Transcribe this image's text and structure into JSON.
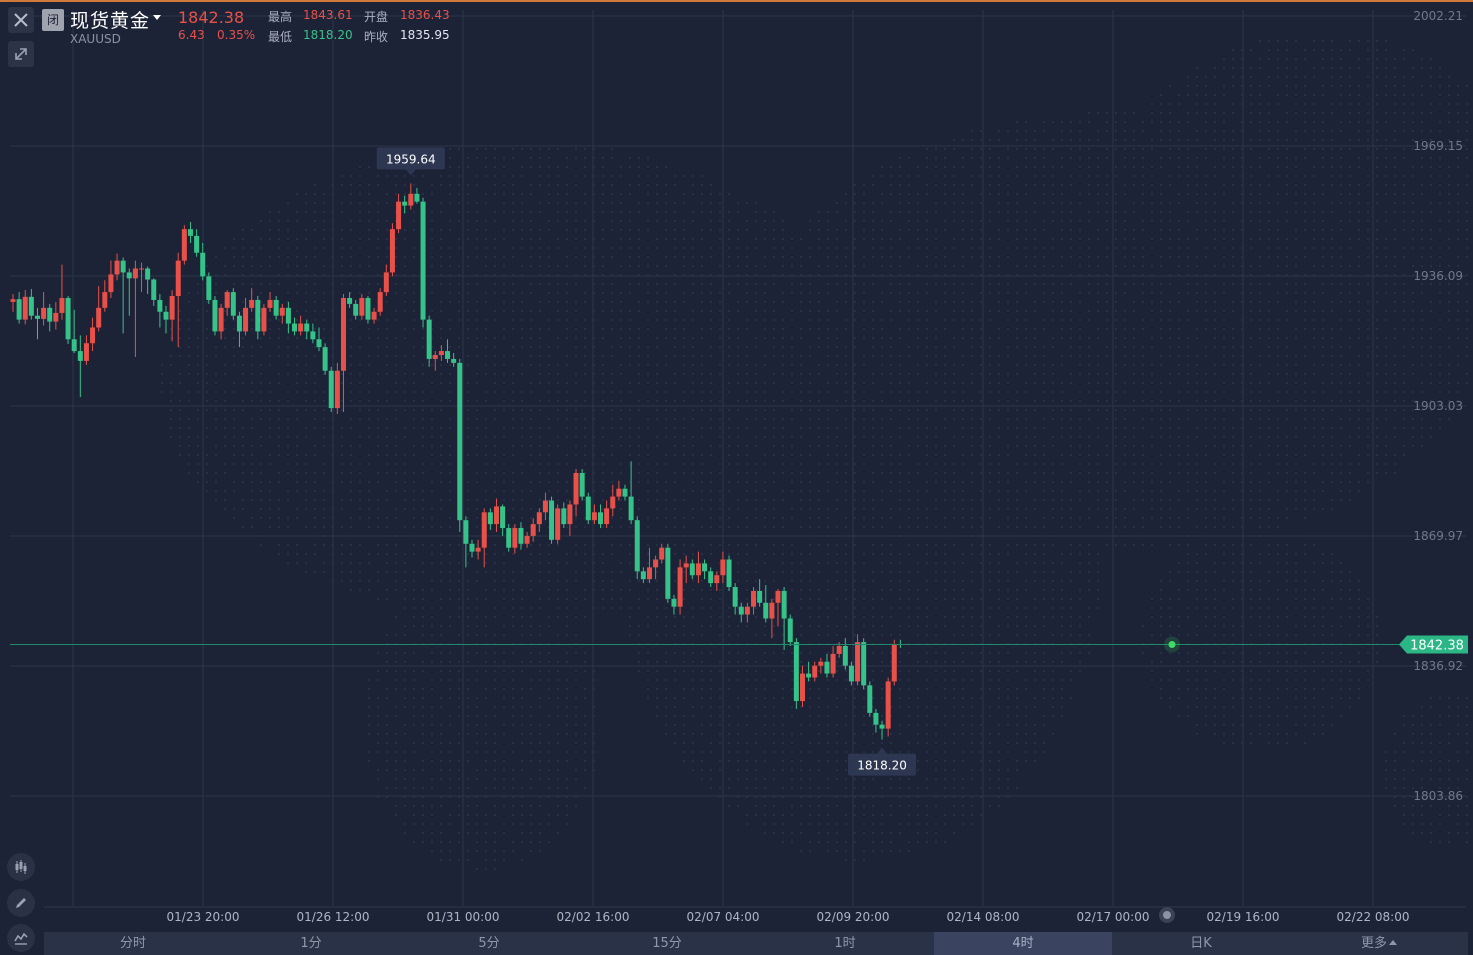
{
  "window": {
    "close_icon": "close-icon",
    "collapse_icon": "collapse-arrows-icon"
  },
  "instrument": {
    "status_badge": "闭",
    "name": "现货黄金",
    "code": "XAUUSD",
    "last_price": "1842.38",
    "change": "6.43",
    "change_pct": "0.35%",
    "high_label": "最高",
    "high": "1843.61",
    "low_label": "最低",
    "low": "1818.20",
    "open_label": "开盘",
    "open": "1836.43",
    "prev_close_label": "昨收",
    "prev_close": "1835.95"
  },
  "colors": {
    "background": "#1d2336",
    "up": "#e8514a",
    "down": "#35c389",
    "grid": "#2c344a",
    "last_price_line": "#1f8a6a",
    "last_price_badge": "#2bb685"
  },
  "side_tools": [
    "candlestick-icon",
    "pencil-icon",
    "indicator-icon"
  ],
  "tabs": [
    "分时",
    "1分",
    "5分",
    "15分",
    "1时",
    "4时",
    "日K",
    "更多"
  ],
  "active_tab": "4时",
  "chart_data": {
    "type": "candlestick",
    "symbol": "XAUUSD",
    "interval": "4时",
    "ylim": [
      1787.3,
      2002.21
    ],
    "y_ticks": [
      2002.21,
      1969.15,
      1936.09,
      1903.03,
      1869.97,
      1836.92,
      1803.86
    ],
    "x_ticks": [
      "01/23 20:00",
      "01/26 12:00",
      "01/31 00:00",
      "02/02 16:00",
      "02/07 04:00",
      "02/09 20:00",
      "02/14 08:00",
      "02/17 00:00",
      "02/19 16:00",
      "02/22 08:00"
    ],
    "last_price": 1842.38,
    "max_label": "1959.64",
    "min_label": "1818.20",
    "grid": true,
    "candles": [
      [
        1929.5,
        1930.2,
        1931.5,
        1927.0
      ],
      [
        1930.2,
        1925.0,
        1932.0,
        1924.0
      ],
      [
        1925.0,
        1930.8,
        1932.5,
        1923.8
      ],
      [
        1930.8,
        1926.0,
        1932.8,
        1925.0
      ],
      [
        1926.0,
        1925.2,
        1928.0,
        1920.0
      ],
      [
        1925.2,
        1928.0,
        1932.0,
        1923.5
      ],
      [
        1928.0,
        1924.5,
        1929.0,
        1922.0
      ],
      [
        1924.5,
        1926.7,
        1929.5,
        1922.5
      ],
      [
        1926.7,
        1930.5,
        1939.0,
        1925.0
      ],
      [
        1930.5,
        1920.0,
        1931.0,
        1918.8
      ],
      [
        1920.0,
        1917.0,
        1927.5,
        1916.5
      ],
      [
        1917.0,
        1914.5,
        1921.0,
        1905.3
      ],
      [
        1914.5,
        1919.0,
        1921.0,
        1913.5
      ],
      [
        1919.0,
        1923.0,
        1925.5,
        1917.0
      ],
      [
        1923.0,
        1928.0,
        1933.5,
        1922.0
      ],
      [
        1928.0,
        1932.0,
        1935.0,
        1927.0
      ],
      [
        1932.0,
        1936.5,
        1940.0,
        1930.5
      ],
      [
        1936.5,
        1940.0,
        1941.8,
        1935.0
      ],
      [
        1940.0,
        1937.0,
        1940.8,
        1921.5
      ],
      [
        1937.0,
        1935.5,
        1938.0,
        1926.0
      ],
      [
        1935.5,
        1938.0,
        1940.0,
        1915.5
      ],
      [
        1938.0,
        1938.0,
        1939.5,
        1932.0
      ],
      [
        1938.0,
        1935.2,
        1938.5,
        1931.5
      ],
      [
        1935.2,
        1930.0,
        1935.5,
        1928.5
      ],
      [
        1930.0,
        1927.0,
        1931.5,
        1923.0
      ],
      [
        1927.0,
        1925.0,
        1928.5,
        1921.5
      ],
      [
        1925.0,
        1931.0,
        1932.5,
        1919.5
      ],
      [
        1931.0,
        1940.0,
        1942.0,
        1918.0
      ],
      [
        1940.0,
        1948.0,
        1949.0,
        1939.0
      ],
      [
        1948.0,
        1946.3,
        1949.8,
        1944.5
      ],
      [
        1946.3,
        1942.0,
        1948.0,
        1941.0
      ],
      [
        1942.0,
        1936.0,
        1944.5,
        1935.0
      ],
      [
        1936.0,
        1930.0,
        1937.0,
        1929.0
      ],
      [
        1930.0,
        1922.0,
        1931.0,
        1921.0
      ],
      [
        1922.0,
        1928.0,
        1929.0,
        1920.0
      ],
      [
        1928.0,
        1932.0,
        1932.5,
        1926.0
      ],
      [
        1932.0,
        1926.0,
        1933.0,
        1925.0
      ],
      [
        1926.0,
        1922.0,
        1927.0,
        1918.0
      ],
      [
        1922.0,
        1928.0,
        1930.5,
        1921.0
      ],
      [
        1928.0,
        1930.0,
        1933.0,
        1927.0
      ],
      [
        1930.0,
        1922.0,
        1931.0,
        1920.0
      ],
      [
        1922.0,
        1928.0,
        1929.0,
        1921.0
      ],
      [
        1928.0,
        1930.0,
        1932.0,
        1927.0
      ],
      [
        1930.0,
        1926.0,
        1931.0,
        1925.0
      ],
      [
        1926.0,
        1928.0,
        1929.0,
        1924.0
      ],
      [
        1928.0,
        1924.0,
        1929.5,
        1921.5
      ],
      [
        1924.0,
        1922.0,
        1925.5,
        1921.0
      ],
      [
        1922.0,
        1924.0,
        1926.0,
        1921.0
      ],
      [
        1924.0,
        1922.0,
        1925.0,
        1920.0
      ],
      [
        1922.0,
        1920.0,
        1924.0,
        1919.0
      ],
      [
        1920.0,
        1918.0,
        1923.0,
        1917.0
      ],
      [
        1918.0,
        1912.0,
        1919.0,
        1911.0
      ],
      [
        1912.0,
        1902.5,
        1913.0,
        1901.5
      ],
      [
        1902.5,
        1912.0,
        1914.0,
        1901.0
      ],
      [
        1912.0,
        1930.5,
        1931.5,
        1901.5
      ],
      [
        1930.5,
        1929.0,
        1932.0,
        1928.0
      ],
      [
        1929.0,
        1926.0,
        1930.0,
        1925.0
      ],
      [
        1926.0,
        1930.5,
        1931.5,
        1925.0
      ],
      [
        1930.5,
        1925.0,
        1931.0,
        1924.0
      ],
      [
        1925.0,
        1927.0,
        1928.0,
        1924.0
      ],
      [
        1927.0,
        1932.0,
        1933.0,
        1926.0
      ],
      [
        1932.0,
        1937.0,
        1939.0,
        1931.0
      ],
      [
        1937.0,
        1948.0,
        1949.5,
        1936.0
      ],
      [
        1948.0,
        1955.0,
        1957.0,
        1947.0
      ],
      [
        1955.0,
        1954.0,
        1956.5,
        1952.0
      ],
      [
        1954.0,
        1957.0,
        1959.64,
        1953.0
      ],
      [
        1957.0,
        1955.0,
        1958.5,
        1954.5
      ],
      [
        1955.0,
        1925.0,
        1956.0,
        1923.0
      ],
      [
        1925.0,
        1915.0,
        1926.0,
        1913.0
      ],
      [
        1915.0,
        1916.0,
        1917.0,
        1912.0
      ],
      [
        1916.0,
        1917.0,
        1918.5,
        1914.5
      ],
      [
        1917.0,
        1915.0,
        1920.0,
        1914.0
      ],
      [
        1915.0,
        1914.0,
        1916.5,
        1913.0
      ],
      [
        1914.0,
        1874.0,
        1915.0,
        1871.0
      ],
      [
        1874.0,
        1868.0,
        1875.0,
        1862.0
      ],
      [
        1868.0,
        1866.0,
        1869.0,
        1864.5
      ],
      [
        1866.0,
        1867.0,
        1869.0,
        1864.0
      ],
      [
        1867.0,
        1876.0,
        1877.0,
        1862.0
      ],
      [
        1876.0,
        1873.0,
        1877.0,
        1871.5
      ],
      [
        1873.0,
        1877.5,
        1879.5,
        1871.0
      ],
      [
        1877.5,
        1872.0,
        1878.0,
        1870.0
      ],
      [
        1872.0,
        1867.0,
        1873.0,
        1866.0
      ],
      [
        1867.0,
        1872.0,
        1873.0,
        1865.5
      ],
      [
        1872.0,
        1868.0,
        1873.5,
        1866.5
      ],
      [
        1868.0,
        1870.0,
        1871.0,
        1867.0
      ],
      [
        1870.0,
        1873.0,
        1874.5,
        1868.5
      ],
      [
        1873.0,
        1876.0,
        1877.0,
        1871.0
      ],
      [
        1876.0,
        1879.0,
        1881.0,
        1874.0
      ],
      [
        1879.0,
        1869.0,
        1880.0,
        1868.0
      ],
      [
        1869.0,
        1877.0,
        1878.0,
        1868.0
      ],
      [
        1877.0,
        1873.0,
        1878.5,
        1872.0
      ],
      [
        1873.0,
        1878.0,
        1879.0,
        1870.0
      ],
      [
        1878.0,
        1886.0,
        1887.0,
        1875.0
      ],
      [
        1886.0,
        1880.0,
        1887.0,
        1879.0
      ],
      [
        1880.0,
        1874.0,
        1881.0,
        1873.0
      ],
      [
        1874.0,
        1876.0,
        1878.0,
        1873.0
      ],
      [
        1876.0,
        1873.0,
        1878.0,
        1872.0
      ],
      [
        1873.0,
        1877.0,
        1879.0,
        1872.0
      ],
      [
        1877.0,
        1880.0,
        1883.0,
        1875.0
      ],
      [
        1880.0,
        1882.0,
        1884.0,
        1879.0
      ],
      [
        1882.0,
        1880.0,
        1883.0,
        1879.0
      ],
      [
        1880.0,
        1874.0,
        1889.0,
        1873.0
      ],
      [
        1874.0,
        1861.0,
        1875.0,
        1859.0
      ],
      [
        1861.0,
        1859.0,
        1862.0,
        1858.0
      ],
      [
        1859.0,
        1862.0,
        1867.0,
        1858.0
      ],
      [
        1862.0,
        1864.0,
        1865.0,
        1859.0
      ],
      [
        1864.0,
        1867.0,
        1868.0,
        1863.0
      ],
      [
        1867.0,
        1854.0,
        1868.0,
        1853.0
      ],
      [
        1854.0,
        1852.0,
        1855.0,
        1850.0
      ],
      [
        1852.0,
        1862.0,
        1864.0,
        1850.0
      ],
      [
        1862.0,
        1863.0,
        1865.0,
        1858.0
      ],
      [
        1863.0,
        1860.0,
        1864.0,
        1859.0
      ],
      [
        1860.0,
        1863.0,
        1866.0,
        1858.0
      ],
      [
        1863.0,
        1861.0,
        1864.0,
        1859.0
      ],
      [
        1861.0,
        1858.0,
        1862.0,
        1857.0
      ],
      [
        1858.0,
        1860.0,
        1861.0,
        1856.0
      ],
      [
        1860.0,
        1864.0,
        1866.0,
        1858.0
      ],
      [
        1864.0,
        1857.0,
        1865.0,
        1856.0
      ],
      [
        1857.0,
        1852.0,
        1858.0,
        1850.0
      ],
      [
        1852.0,
        1850.0,
        1853.0,
        1848.0
      ],
      [
        1850.0,
        1852.0,
        1853.0,
        1848.0
      ],
      [
        1852.0,
        1856.0,
        1857.0,
        1850.0
      ],
      [
        1856.0,
        1853.0,
        1859.0,
        1852.0
      ],
      [
        1853.0,
        1849.0,
        1857.5,
        1848.0
      ],
      [
        1849.0,
        1853.0,
        1854.0,
        1844.0
      ],
      [
        1853.0,
        1856.0,
        1856.5,
        1847.0
      ],
      [
        1856.0,
        1849.0,
        1857.0,
        1841.0
      ],
      [
        1849.0,
        1843.0,
        1850.0,
        1842.0
      ],
      [
        1843.0,
        1828.0,
        1844.0,
        1826.0
      ],
      [
        1828.0,
        1835.0,
        1837.0,
        1826.5
      ],
      [
        1835.0,
        1834.0,
        1838.0,
        1833.0
      ],
      [
        1834.0,
        1837.0,
        1838.0,
        1833.0
      ],
      [
        1837.0,
        1838.0,
        1839.0,
        1835.0
      ],
      [
        1838.0,
        1835.0,
        1840.0,
        1834.0
      ],
      [
        1835.0,
        1840.0,
        1842.0,
        1834.0
      ],
      [
        1840.0,
        1842.0,
        1843.0,
        1839.0
      ],
      [
        1842.0,
        1837.0,
        1844.0,
        1836.0
      ],
      [
        1837.0,
        1833.0,
        1838.0,
        1832.0
      ],
      [
        1833.0,
        1843.0,
        1845.0,
        1832.0
      ],
      [
        1843.0,
        1832.0,
        1844.0,
        1831.0
      ],
      [
        1832.0,
        1825.0,
        1833.0,
        1824.0
      ],
      [
        1825.0,
        1822.0,
        1826.0,
        1820.0
      ],
      [
        1822.0,
        1821.0,
        1823.0,
        1818.2
      ],
      [
        1821.0,
        1833.0,
        1834.0,
        1819.0
      ],
      [
        1833.0,
        1842.5,
        1843.61,
        1832.0
      ],
      [
        1842.5,
        1842.38,
        1843.61,
        1841.5
      ]
    ]
  }
}
